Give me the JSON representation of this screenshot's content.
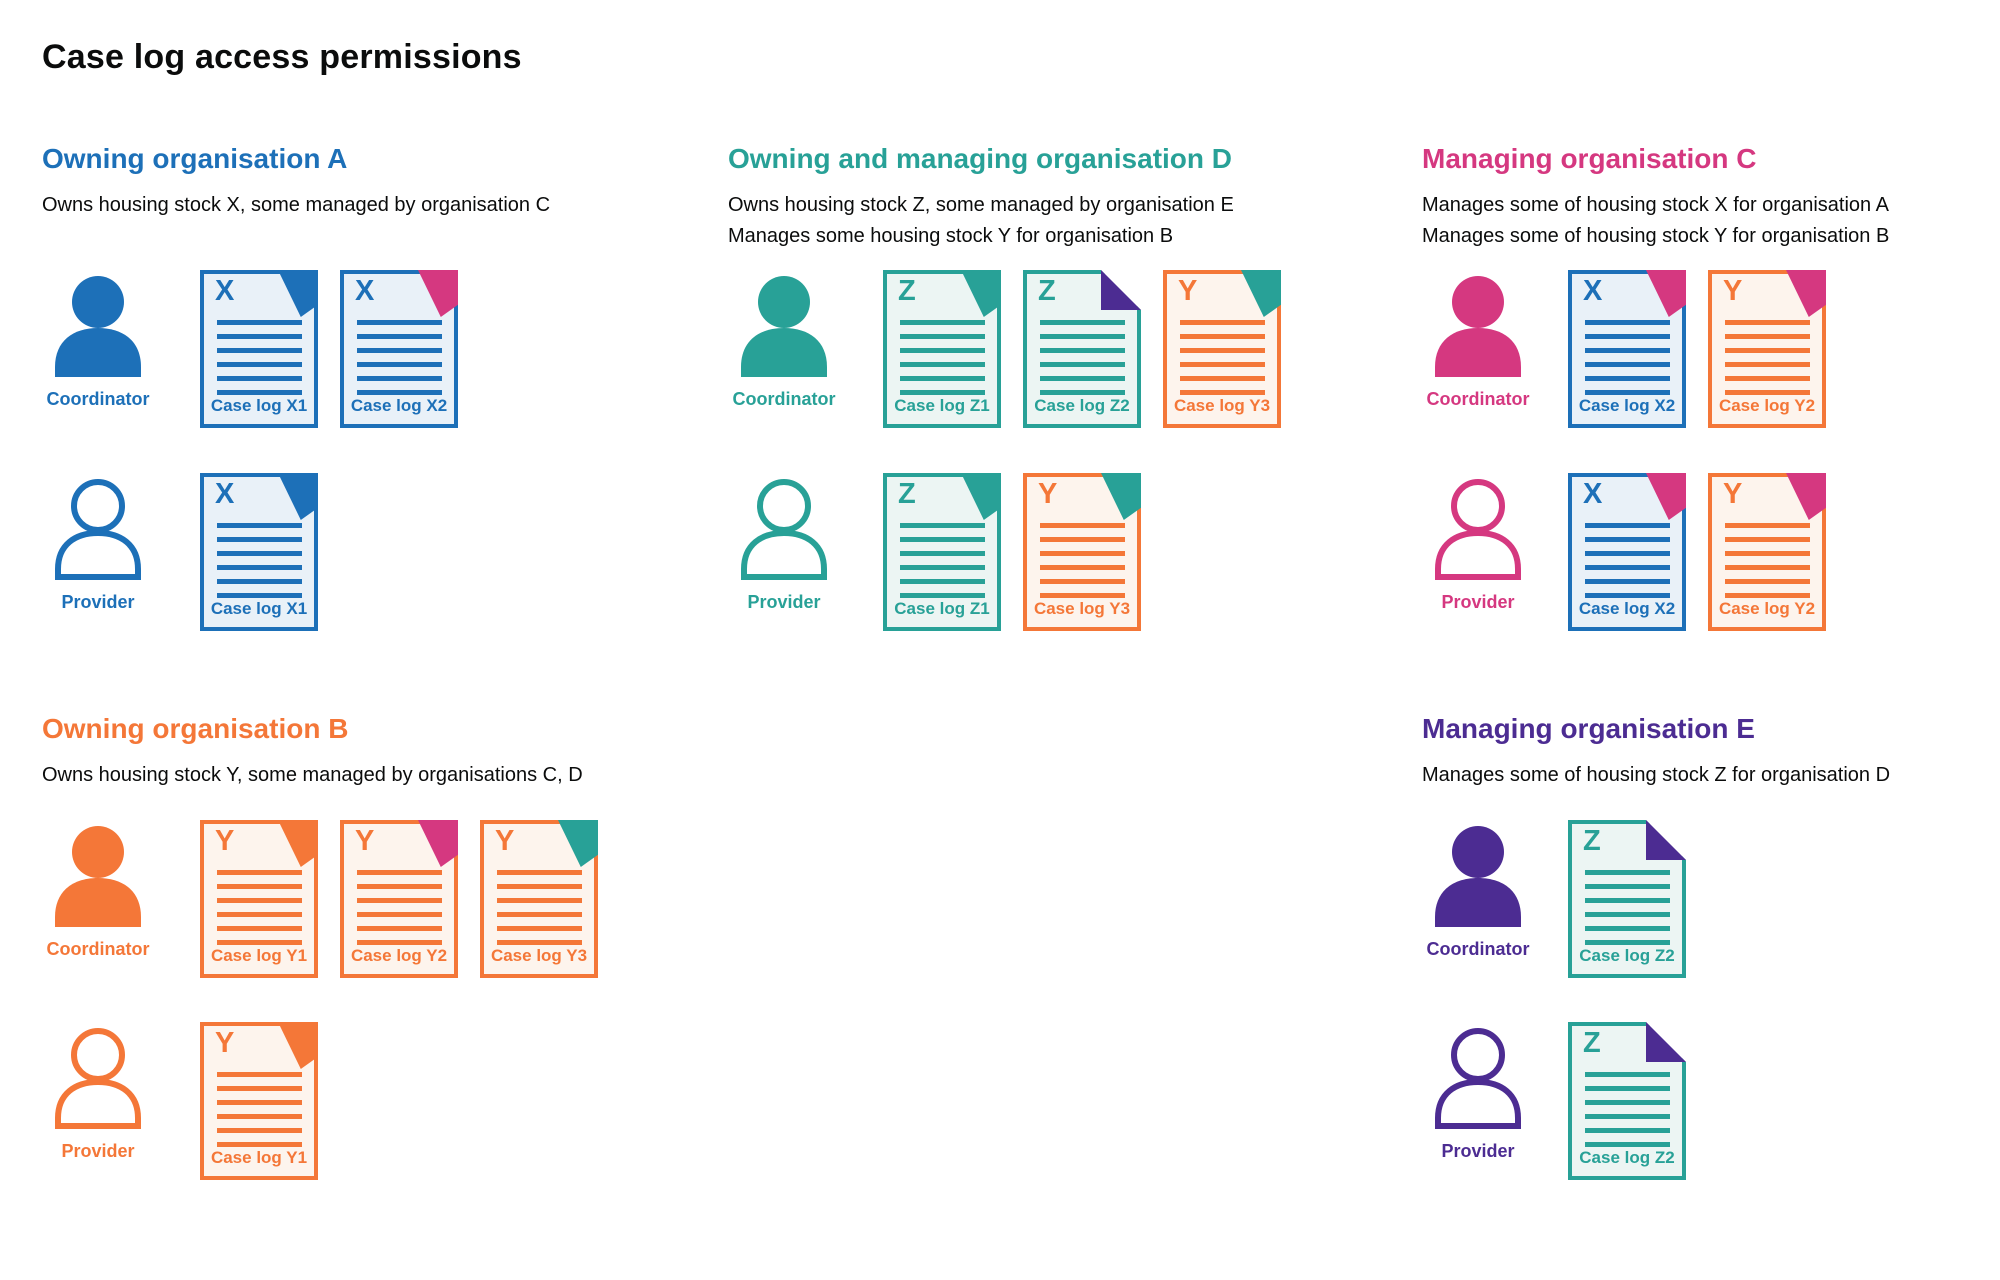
{
  "page_title": "Case log access permissions",
  "roles": {
    "coordinator": "Coordinator",
    "provider": "Provider"
  },
  "colors": {
    "blue": "#1d70b8",
    "teal": "#28a197",
    "pink": "#d53880",
    "orange": "#f47738",
    "purple": "#4c2c92",
    "text": "#0b0c0c",
    "tints": {
      "blue": "#e9f1f8",
      "teal": "#ecf5f3",
      "orange": "#fdf4ed"
    }
  },
  "organisations": [
    {
      "id": "A",
      "name": "Owning organisation A",
      "color": "blue",
      "column": 0,
      "row": 0,
      "description": [
        "Owns housing stock X, some managed by organisation C"
      ],
      "coordinator_docs": [
        {
          "letter": "X",
          "label": "Case log X1",
          "color": "blue",
          "fold": "blue",
          "fold_style": "corner"
        },
        {
          "letter": "X",
          "label": "Case log X2",
          "color": "blue",
          "fold": "pink",
          "fold_style": "corner"
        }
      ],
      "provider_docs": [
        {
          "letter": "X",
          "label": "Case log X1",
          "color": "blue",
          "fold": "blue",
          "fold_style": "corner"
        }
      ]
    },
    {
      "id": "D",
      "name": "Owning and managing organisation D",
      "color": "teal",
      "column": 1,
      "row": 0,
      "description": [
        "Owns housing stock Z, some managed by organisation E",
        "Manages some housing stock Y for organisation B"
      ],
      "coordinator_docs": [
        {
          "letter": "Z",
          "label": "Case log Z1",
          "color": "teal",
          "fold": "teal",
          "fold_style": "corner"
        },
        {
          "letter": "Z",
          "label": "Case log Z2",
          "color": "teal",
          "fold": "purple",
          "fold_style": "flap"
        },
        {
          "letter": "Y",
          "label": "Case log Y3",
          "color": "orange",
          "fold": "teal",
          "fold_style": "corner"
        }
      ],
      "provider_docs": [
        {
          "letter": "Z",
          "label": "Case log Z1",
          "color": "teal",
          "fold": "teal",
          "fold_style": "corner"
        },
        {
          "letter": "Y",
          "label": "Case log Y3",
          "color": "orange",
          "fold": "teal",
          "fold_style": "corner"
        }
      ]
    },
    {
      "id": "C",
      "name": "Managing organisation C",
      "color": "pink",
      "column": 2,
      "row": 0,
      "description": [
        "Manages some of housing stock X for organisation A",
        "Manages some of housing stock Y for organisation B"
      ],
      "coordinator_docs": [
        {
          "letter": "X",
          "label": "Case log X2",
          "color": "blue",
          "fold": "pink",
          "fold_style": "corner"
        },
        {
          "letter": "Y",
          "label": "Case log Y2",
          "color": "orange",
          "fold": "pink",
          "fold_style": "corner"
        }
      ],
      "provider_docs": [
        {
          "letter": "X",
          "label": "Case log X2",
          "color": "blue",
          "fold": "pink",
          "fold_style": "corner"
        },
        {
          "letter": "Y",
          "label": "Case log Y2",
          "color": "orange",
          "fold": "pink",
          "fold_style": "corner"
        }
      ]
    },
    {
      "id": "B",
      "name": "Owning organisation B",
      "color": "orange",
      "column": 0,
      "row": 1,
      "description": [
        "Owns housing stock Y, some managed by organisations C, D"
      ],
      "coordinator_docs": [
        {
          "letter": "Y",
          "label": "Case log Y1",
          "color": "orange",
          "fold": "orange",
          "fold_style": "corner"
        },
        {
          "letter": "Y",
          "label": "Case log Y2",
          "color": "orange",
          "fold": "pink",
          "fold_style": "corner"
        },
        {
          "letter": "Y",
          "label": "Case log Y3",
          "color": "orange",
          "fold": "teal",
          "fold_style": "corner"
        }
      ],
      "provider_docs": [
        {
          "letter": "Y",
          "label": "Case log Y1",
          "color": "orange",
          "fold": "orange",
          "fold_style": "corner"
        }
      ]
    },
    {
      "id": "E",
      "name": "Managing organisation E",
      "color": "purple",
      "column": 2,
      "row": 1,
      "description": [
        "Manages some of housing stock Z for organisation D"
      ],
      "coordinator_docs": [
        {
          "letter": "Z",
          "label": "Case log Z2",
          "color": "teal",
          "fold": "purple",
          "fold_style": "flap"
        }
      ],
      "provider_docs": [
        {
          "letter": "Z",
          "label": "Case log Z2",
          "color": "teal",
          "fold": "purple",
          "fold_style": "flap"
        }
      ]
    }
  ]
}
